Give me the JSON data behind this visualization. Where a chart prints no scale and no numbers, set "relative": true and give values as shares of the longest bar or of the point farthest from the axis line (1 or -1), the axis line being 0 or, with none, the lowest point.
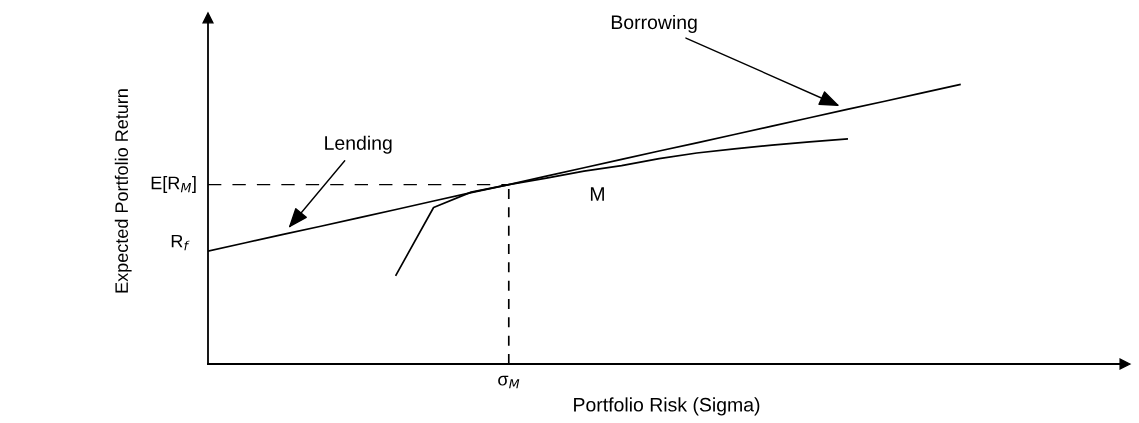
{
  "chart_data": {
    "type": "line",
    "relative": true,
    "xlabel": "Portfolio Risk (Sigma)",
    "ylabel": "Expected Portfolio Return",
    "categories": [
      null,
      null,
      null,
      null,
      null,
      null,
      null,
      null,
      null,
      null,
      null,
      null,
      null,
      null,
      null,
      null,
      null,
      null,
      null,
      null,
      null
    ],
    "series": [
      {
        "color": "#000000",
        "values": [
          0.404,
          0.434,
          0.464,
          0.493,
          0.523,
          0.553,
          0.583,
          0.613,
          0.642,
          0.672,
          0.702,
          0.732,
          0.762,
          0.791,
          0.821,
          0.851,
          0.881,
          0.911,
          0.94,
          0.97,
          1.0
        ]
      },
      {
        "color": "#000000",
        "values": [
          null,
          null,
          null,
          null,
          null,
          0.318,
          0.56,
          0.615,
          0.642,
          0.665,
          0.69,
          0.71,
          0.735,
          0.755,
          0.77,
          0.783,
          0.795,
          0.805,
          null,
          null,
          null
        ]
      }
    ],
    "ref_lines": [
      {
        "axis": "y",
        "value": 0.642,
        "label": "E[R$_{M}$]",
        "line_style": "dashed",
        "color": "#000000"
      }
    ],
    "annotations": [
      "Borrowing",
      "Lending",
      "M",
      "R$_{f}$",
      "σ$_{M}$"
    ],
    "line_style": "solid"
  }
}
